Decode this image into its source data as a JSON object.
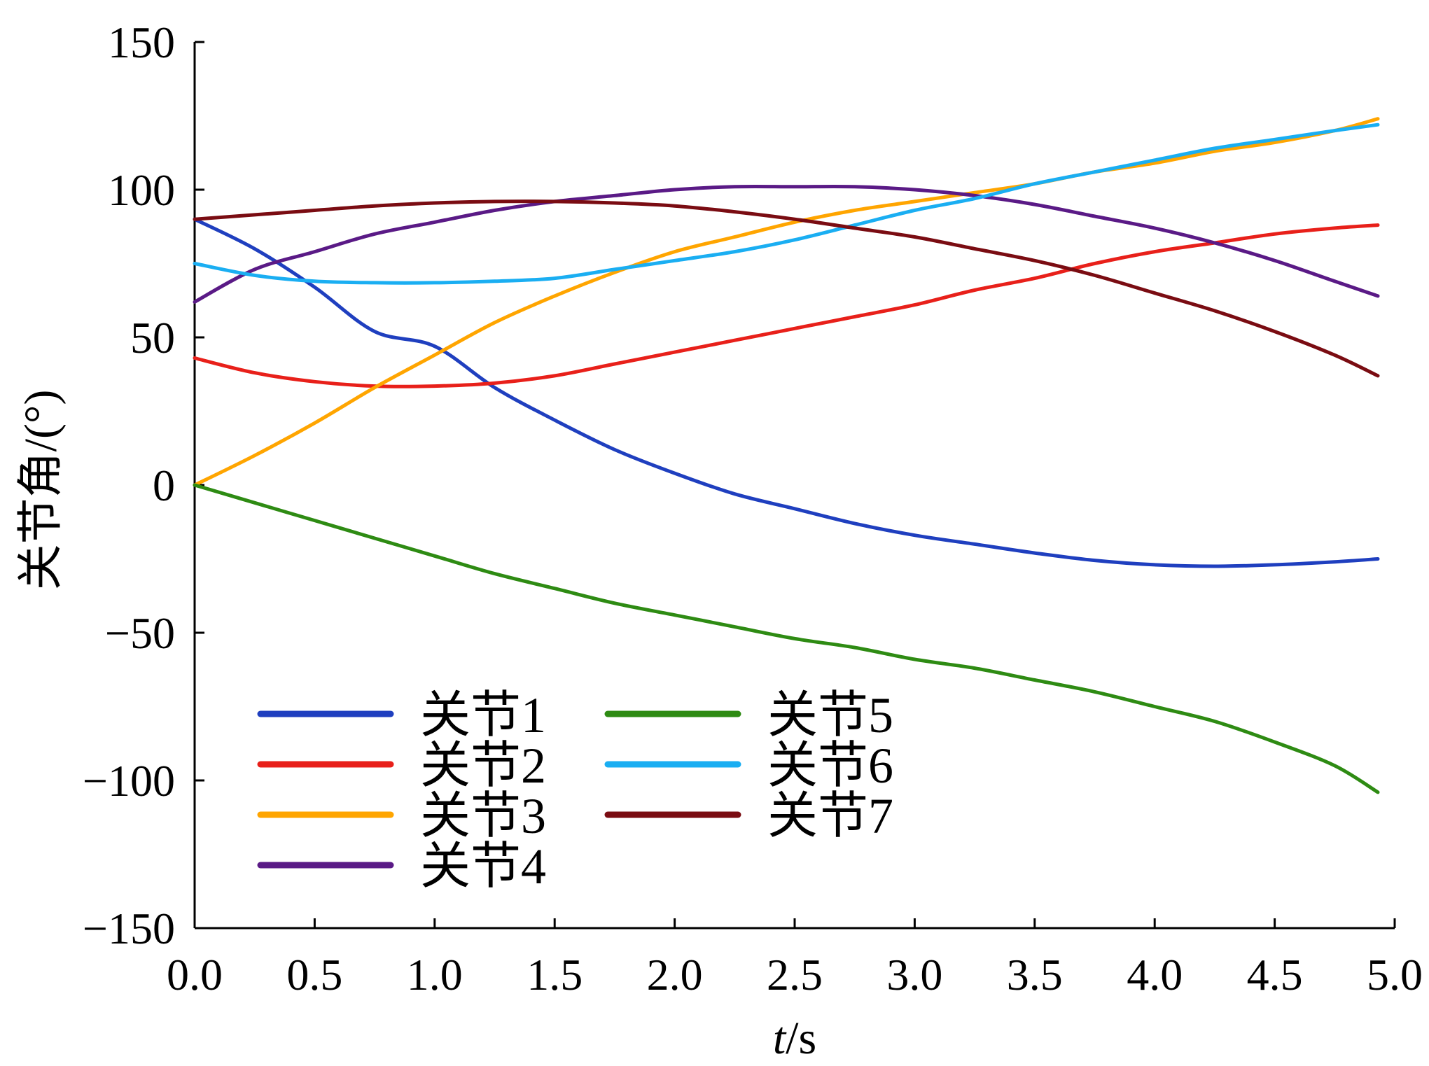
{
  "chart_data": {
    "type": "line",
    "xlabel_italic": "t",
    "xlabel_unit": "/s",
    "ylabel": "关节角/(°)",
    "xlim": [
      0,
      5
    ],
    "ylim": [
      -150,
      150
    ],
    "xticks": [
      0,
      0.5,
      1,
      1.5,
      2,
      2.5,
      3,
      3.5,
      4,
      4.5,
      5
    ],
    "xtick_labels": [
      "0.0",
      "0.5",
      "1.0",
      "1.5",
      "2.0",
      "2.5",
      "3.0",
      "3.5",
      "4.0",
      "4.5",
      "5.0"
    ],
    "yticks": [
      -150,
      -100,
      -50,
      0,
      50,
      100,
      150
    ],
    "ytick_labels": [
      "−150",
      "−100",
      "−50",
      "0",
      "50",
      "100",
      "150"
    ],
    "grid": false,
    "legend_position": "bottom-left",
    "x": [
      0,
      0.25,
      0.5,
      0.75,
      1.0,
      1.25,
      1.5,
      1.75,
      2.0,
      2.25,
      2.5,
      2.75,
      3.0,
      3.25,
      3.5,
      3.75,
      4.0,
      4.25,
      4.5,
      4.75,
      4.93
    ],
    "series": [
      {
        "name": "关节1",
        "color": "#1f3fbf",
        "values": [
          90,
          80,
          67,
          52,
          47,
          33,
          22,
          12,
          4,
          -3,
          -8,
          -13,
          -17,
          -20,
          -23,
          -25.5,
          -27,
          -27.5,
          -27,
          -26,
          -25
        ]
      },
      {
        "name": "关节2",
        "color": "#e8201a",
        "values": [
          43,
          38,
          35,
          33.5,
          33.5,
          34.5,
          37,
          41,
          45,
          49,
          53,
          57,
          61,
          66,
          70,
          75,
          79,
          82,
          85,
          87,
          88
        ]
      },
      {
        "name": "关节3",
        "color": "#ffa500",
        "values": [
          0,
          10,
          21,
          33,
          44,
          55,
          64,
          72,
          79,
          84,
          89,
          93,
          96,
          99,
          102,
          106,
          109,
          113,
          116,
          120,
          124
        ]
      },
      {
        "name": "关节4",
        "color": "#5a1a86",
        "values": [
          62,
          73,
          79,
          85,
          89,
          93,
          96,
          98,
          100,
          101,
          101,
          101,
          100,
          98,
          95,
          91,
          87,
          82,
          76,
          69,
          64
        ]
      },
      {
        "name": "关节5",
        "color": "#2e8b13",
        "values": [
          0,
          -6,
          -12,
          -18,
          -24,
          -30,
          -35,
          -40,
          -44,
          -48,
          -52,
          -55,
          -59,
          -62,
          -66,
          -70,
          -75,
          -80,
          -87,
          -95,
          -104
        ]
      },
      {
        "name": "关节6",
        "color": "#1aaef2",
        "values": [
          75,
          71,
          69,
          68.5,
          68.5,
          69,
          70,
          73,
          76,
          79,
          83,
          88,
          93,
          97,
          102,
          106,
          110,
          114,
          117,
          120,
          122
        ]
      },
      {
        "name": "关节7",
        "color": "#7a0c12",
        "values": [
          90,
          91.5,
          93,
          94.5,
          95.5,
          96,
          96,
          95.5,
          94.5,
          92.5,
          90,
          87,
          84,
          80,
          76,
          71,
          65,
          59,
          52,
          44,
          37
        ]
      }
    ]
  }
}
